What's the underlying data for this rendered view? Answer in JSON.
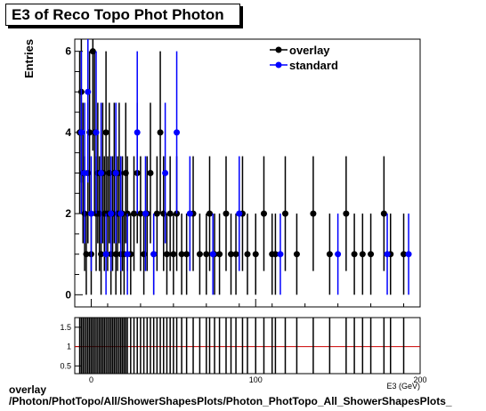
{
  "title": "E3 of Reco Topo Phot Photon",
  "footer": {
    "line1": "overlay",
    "line2": "/Photon/PhotTopo/All/ShowerShapesPlots/Photon_PhotTopo_All_ShowerShapesPlots_"
  },
  "colors": {
    "overlay": "#000000",
    "standard": "#0000ff",
    "ratio_line": "#cc0000"
  },
  "chart_data": [
    {
      "type": "scatter",
      "ylabel": "Entries",
      "xlabel": "E3 (GeV)",
      "xlim": [
        -10,
        200
      ],
      "ylim": [
        -0.3,
        6.3
      ],
      "yticks": [
        0,
        2,
        4,
        6
      ],
      "xticks": [
        0,
        100,
        200
      ],
      "legend": {
        "placement": "top-right",
        "entries": [
          "overlay",
          "standard"
        ]
      },
      "series": [
        {
          "name": "overlay",
          "x": [
            -7,
            -6,
            -5,
            -4,
            -3,
            -2,
            -1,
            0,
            1,
            2,
            3,
            4,
            5,
            6,
            7,
            8,
            9,
            10,
            11,
            12,
            13,
            14,
            15,
            16,
            17,
            18,
            19,
            20,
            21,
            22,
            24,
            26,
            28,
            30,
            32,
            34,
            36,
            38,
            40,
            42,
            44,
            46,
            48,
            50,
            52,
            55,
            58,
            62,
            66,
            70,
            72,
            75,
            78,
            82,
            85,
            88,
            92,
            95,
            100,
            105,
            110,
            112,
            118,
            125,
            135,
            145,
            155,
            160,
            165,
            170,
            178,
            182,
            190
          ],
          "y": [
            4,
            5,
            3,
            2,
            1,
            3,
            4,
            1,
            6,
            4,
            2,
            3,
            2,
            1,
            3,
            2,
            4,
            2,
            3,
            1,
            2,
            3,
            1,
            2,
            3,
            1,
            2,
            1,
            3,
            2,
            1,
            2,
            3,
            2,
            1,
            2,
            3,
            1,
            2,
            4,
            2,
            1,
            2,
            1,
            2,
            1,
            1,
            2,
            1,
            1,
            2,
            1,
            1,
            2,
            1,
            1,
            2,
            1,
            1,
            2,
            1,
            1,
            2,
            1,
            2,
            1,
            2,
            1,
            1,
            1,
            2,
            1,
            1
          ]
        },
        {
          "name": "standard",
          "x": [
            -6,
            -4,
            -2,
            0,
            3,
            6,
            9,
            12,
            15,
            18,
            22,
            28,
            33,
            38,
            45,
            52,
            60,
            74,
            90,
            115,
            150,
            180,
            193
          ],
          "y": [
            4,
            3,
            5,
            2,
            4,
            3,
            1,
            2,
            3,
            2,
            1,
            4,
            2,
            1,
            3,
            4,
            2,
            1,
            2,
            1,
            1,
            1,
            1
          ]
        }
      ]
    },
    {
      "type": "line",
      "ylim": [
        0.3,
        1.75
      ],
      "yticks": [
        0.5,
        1,
        1.5
      ],
      "xticks": [
        0,
        100,
        200
      ],
      "series": [
        {
          "name": "",
          "x": [
            -10,
            200
          ],
          "y": [
            1,
            1
          ]
        }
      ]
    }
  ]
}
